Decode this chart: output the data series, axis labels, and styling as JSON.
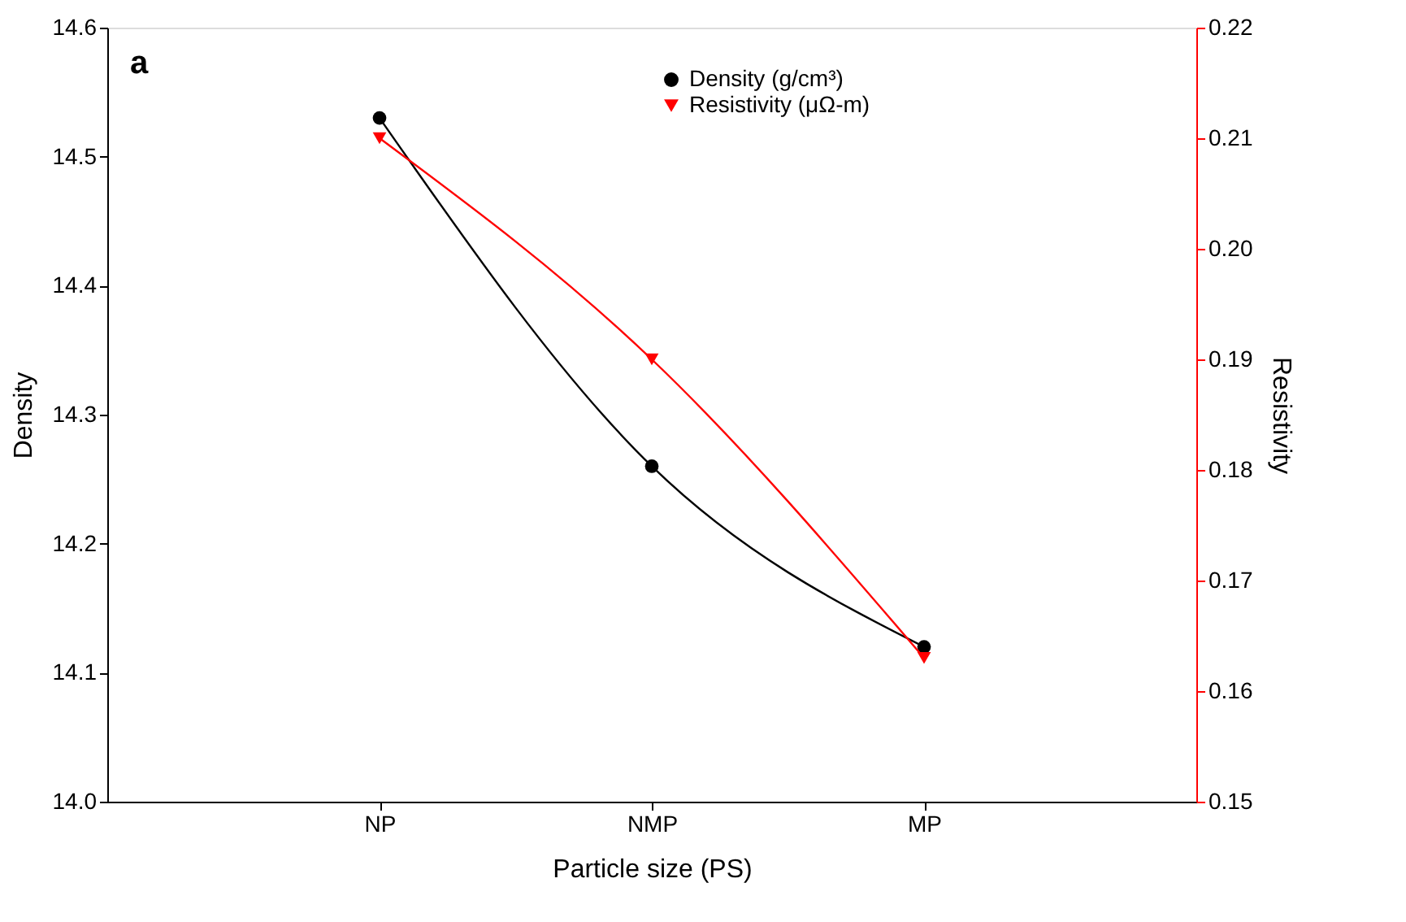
{
  "chart_data": {
    "type": "line",
    "xlabel": "Particle size (PS)",
    "ylabel": "Density",
    "y2label": "Resistivity",
    "categories": [
      "NP",
      "NMP",
      "MP"
    ],
    "series": [
      {
        "name": "Density (g/cm³)",
        "color": "#000000",
        "marker": "circle",
        "values": [
          14.53,
          14.26,
          14.12
        ]
      },
      {
        "name": "Resistivity (μΩ-m)",
        "color": "#ff0000",
        "marker": "triangle-down",
        "axis": "y2",
        "values": [
          0.21,
          0.19,
          0.163
        ]
      }
    ],
    "ylim": [
      14.0,
      14.6
    ],
    "yticks": [
      {
        "value": 14.0,
        "label": "14.0"
      },
      {
        "value": 14.1,
        "label": "14.1"
      },
      {
        "value": 14.2,
        "label": "14.2"
      },
      {
        "value": 14.3,
        "label": "14.3"
      },
      {
        "value": 14.4,
        "label": "14.4"
      },
      {
        "value": 14.5,
        "label": "14.5"
      },
      {
        "value": 14.6,
        "label": "14.6"
      }
    ],
    "y2lim": [
      0.15,
      0.22
    ],
    "y2ticks": [
      {
        "value": 0.15,
        "label": "0.15"
      },
      {
        "value": 0.16,
        "label": "0.16"
      },
      {
        "value": 0.17,
        "label": "0.17"
      },
      {
        "value": 0.18,
        "label": "0.18"
      },
      {
        "value": 0.19,
        "label": "0.19"
      },
      {
        "value": 0.2,
        "label": "0.20"
      },
      {
        "value": 0.21,
        "label": "0.21"
      },
      {
        "value": 0.22,
        "label": "0.22"
      }
    ],
    "annotations": [
      "a"
    ],
    "legend": "top",
    "grid": false,
    "line_style": "solid"
  }
}
